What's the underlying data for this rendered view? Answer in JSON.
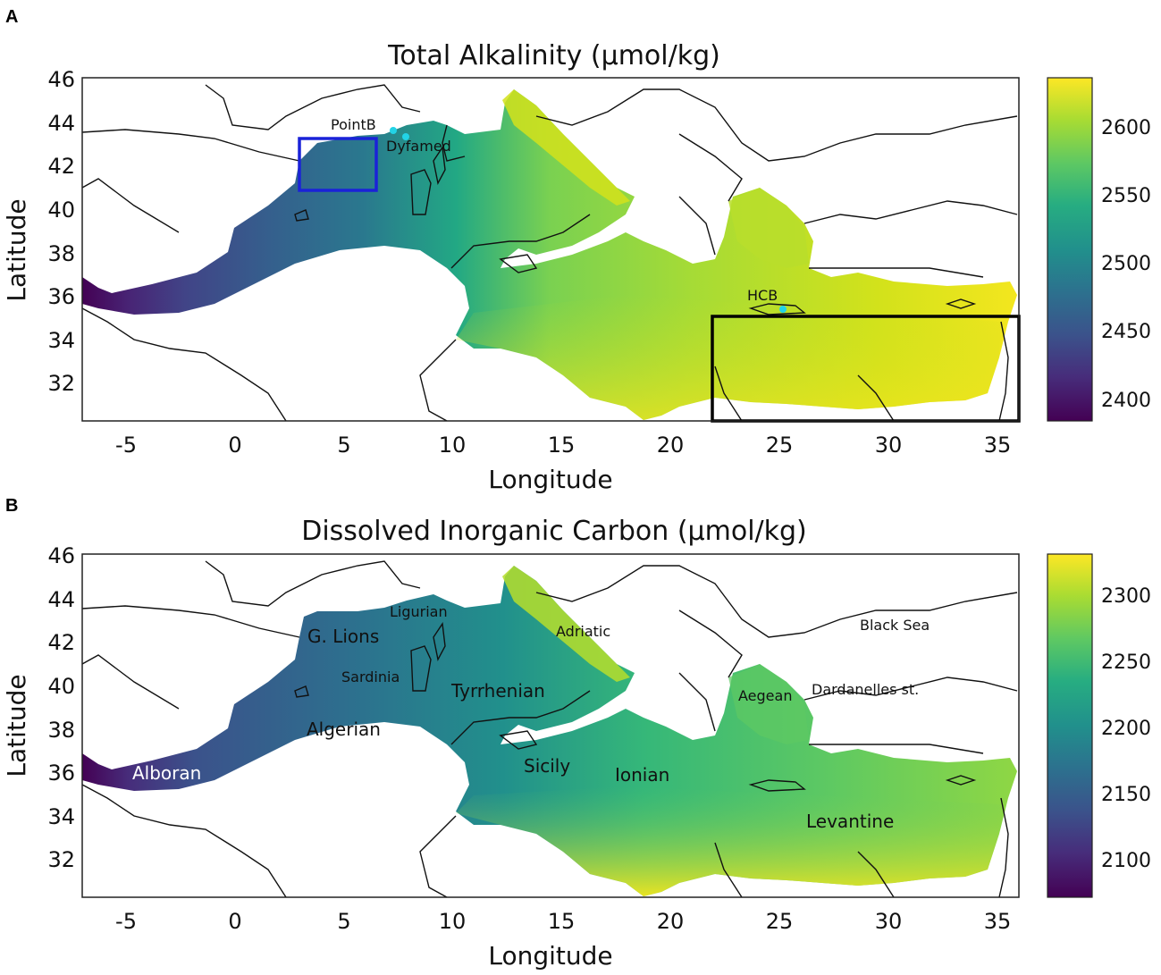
{
  "panels": [
    {
      "letter": "A",
      "title": "Total Alkalinity (μmol/kg)",
      "xlabel": "Longitude",
      "ylabel": "Latitude",
      "x_ticks": [
        "-5",
        "0",
        "5",
        "10",
        "15",
        "20",
        "25",
        "30",
        "35"
      ],
      "y_ticks": [
        "46",
        "44",
        "42",
        "40",
        "38",
        "36",
        "34",
        "32"
      ],
      "colorbar": {
        "ticks": [
          "2600",
          "2550",
          "2500",
          "2450",
          "2400"
        ],
        "range": [
          2385,
          2635
        ],
        "colormap": "viridis"
      },
      "stations": [
        {
          "name": "PointB",
          "lon": 7.3,
          "lat": 43.7
        },
        {
          "name": "Dyfamed",
          "lon": 7.9,
          "lat": 43.4
        },
        {
          "name": "HCB",
          "lon": 25.3,
          "lat": 35.4
        }
      ],
      "boxes": [
        {
          "name": "gulf-of-lions-box",
          "lon": [
            3.0,
            6.5
          ],
          "lat": [
            40.8,
            43.2
          ],
          "color": "#1a22d8"
        },
        {
          "name": "levantine-box",
          "lon": [
            22.0,
            36.0
          ],
          "lat": [
            30.3,
            35.1
          ],
          "color": "#000000"
        }
      ]
    },
    {
      "letter": "B",
      "title": "Dissolved Inorganic Carbon (μmol/kg)",
      "xlabel": "Longitude",
      "ylabel": "Latitude",
      "x_ticks": [
        "-5",
        "0",
        "5",
        "10",
        "15",
        "20",
        "25",
        "30",
        "35"
      ],
      "y_ticks": [
        "46",
        "44",
        "42",
        "40",
        "38",
        "36",
        "34",
        "32"
      ],
      "colorbar": {
        "ticks": [
          "2300",
          "2250",
          "2200",
          "2150",
          "2100"
        ],
        "range": [
          2070,
          2330
        ],
        "colormap": "viridis"
      },
      "regions": [
        {
          "name": "Ligurian"
        },
        {
          "name": "G. Lions"
        },
        {
          "name": "Adriatic"
        },
        {
          "name": "Black Sea"
        },
        {
          "name": "Sardinia"
        },
        {
          "name": "Tyrrhenian"
        },
        {
          "name": "Aegean"
        },
        {
          "name": "Dardanelles st."
        },
        {
          "name": "Algerian"
        },
        {
          "name": "Sicily"
        },
        {
          "name": "Ionian"
        },
        {
          "name": "Alboran"
        },
        {
          "name": "Levantine"
        }
      ]
    }
  ],
  "colors": {
    "viridis_low": "#440154",
    "viridis_mid": "#21908c",
    "viridis_high": "#fde725",
    "station": "#22d3e6"
  }
}
